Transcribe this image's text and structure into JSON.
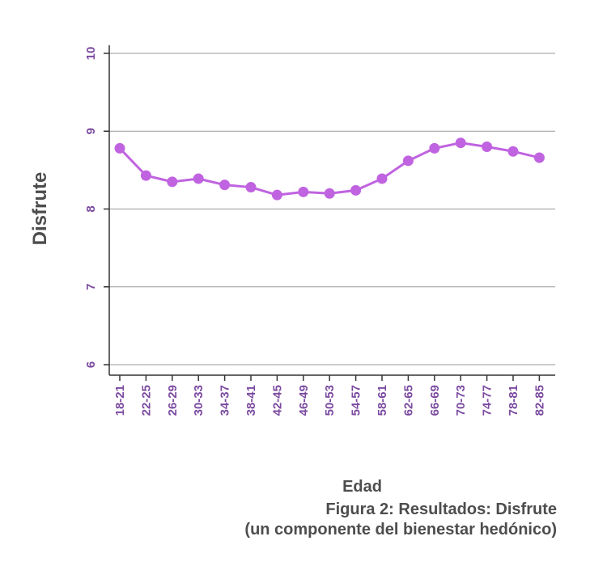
{
  "chart_data": {
    "type": "line",
    "title": "",
    "xlabel": "Edad",
    "ylabel": "Disfrute",
    "ylim": [
      6,
      10
    ],
    "yticks": [
      6,
      7,
      8,
      9,
      10
    ],
    "grid": true,
    "legend": "none",
    "categories": [
      "18-21",
      "22-25",
      "26-29",
      "30-33",
      "34-37",
      "38-41",
      "42-45",
      "46-49",
      "50-53",
      "54-57",
      "58-61",
      "62-65",
      "66-69",
      "70-73",
      "74-77",
      "78-81",
      "82-85"
    ],
    "series": [
      {
        "values": [
          8.78,
          8.43,
          8.35,
          8.39,
          8.31,
          8.28,
          8.18,
          8.22,
          8.2,
          8.24,
          8.39,
          8.62,
          8.78,
          8.85,
          8.8,
          8.74,
          8.66
        ],
        "color": "#c063e0"
      }
    ]
  },
  "caption": {
    "line1": "Figura 2: Resultados: Disfrute",
    "line2": "(un componente del bienestar hedónico)"
  }
}
